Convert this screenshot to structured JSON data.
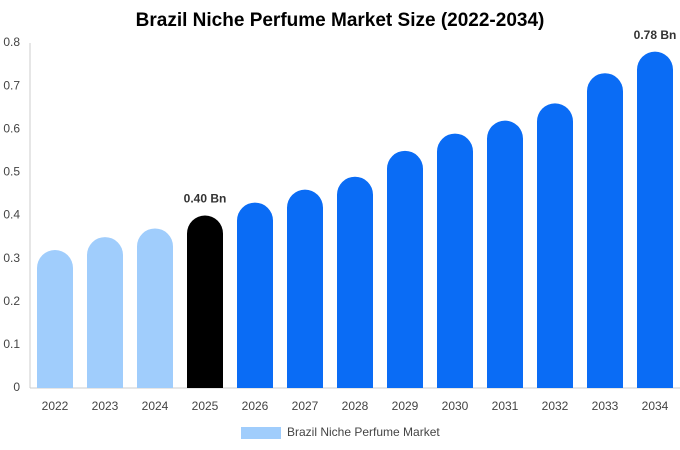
{
  "chart_data": {
    "type": "bar",
    "title": "Brazil Niche Perfume Market Size (2022-2034)",
    "categories": [
      "2022",
      "2023",
      "2024",
      "2025",
      "2026",
      "2027",
      "2028",
      "2029",
      "2030",
      "2031",
      "2032",
      "2033",
      "2034"
    ],
    "series": [
      {
        "name": "Brazil Niche Perfume Market",
        "color": "#a0cdfc",
        "values": [
          0.32,
          0.35,
          0.37,
          0.4,
          0.43,
          0.46,
          0.49,
          0.55,
          0.59,
          0.62,
          0.66,
          0.73,
          0.78
        ],
        "colors": [
          "#a0cdfc",
          "#a0cdfc",
          "#a0cdfc",
          "#000000",
          "#0a6cf5",
          "#0a6cf5",
          "#0a6cf5",
          "#0a6cf5",
          "#0a6cf5",
          "#0a6cf5",
          "#0a6cf5",
          "#0a6cf5",
          "#0a6cf5"
        ],
        "value_labels": [
          null,
          null,
          null,
          "0.40 Bn",
          null,
          null,
          null,
          null,
          null,
          null,
          null,
          null,
          "0.78 Bn"
        ]
      }
    ],
    "ylim": [
      0,
      0.8
    ],
    "yticks": [
      0,
      0.1,
      0.2,
      0.3,
      0.4,
      0.5,
      0.6,
      0.7,
      0.8
    ],
    "grid": false
  }
}
